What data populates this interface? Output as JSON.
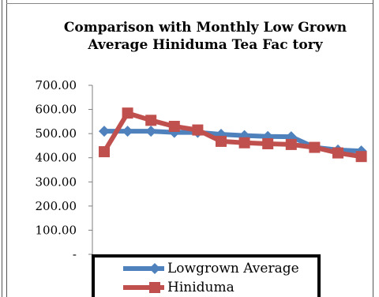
{
  "chart_data": {
    "type": "line",
    "title_line1": "Comparison with Monthly Low Grown",
    "title_line2": "Average Hiniduma Tea Fac tory",
    "ylim": [
      0,
      700
    ],
    "y_ticks": [
      {
        "value": 700,
        "label": "700.00"
      },
      {
        "value": 600,
        "label": "600.00"
      },
      {
        "value": 500,
        "label": "500.00"
      },
      {
        "value": 400,
        "label": "400.00"
      },
      {
        "value": 300,
        "label": "300.00"
      },
      {
        "value": 200,
        "label": "200.00"
      },
      {
        "value": 100,
        "label": "100.00"
      },
      {
        "value": 0,
        "label": "-"
      }
    ],
    "x_count": 12,
    "series": [
      {
        "name": "Lowgrown Average",
        "color": "#4f81bd",
        "marker": "diamond",
        "values": [
          510,
          510,
          510,
          505,
          505,
          497,
          492,
          488,
          487,
          443,
          432,
          428
        ]
      },
      {
        "name": "Hiniduma",
        "color": "#c0504d",
        "marker": "square",
        "values": [
          425,
          585,
          555,
          530,
          515,
          468,
          462,
          458,
          455,
          443,
          420,
          405
        ]
      }
    ],
    "legend_position": "bottom",
    "grid": false
  }
}
